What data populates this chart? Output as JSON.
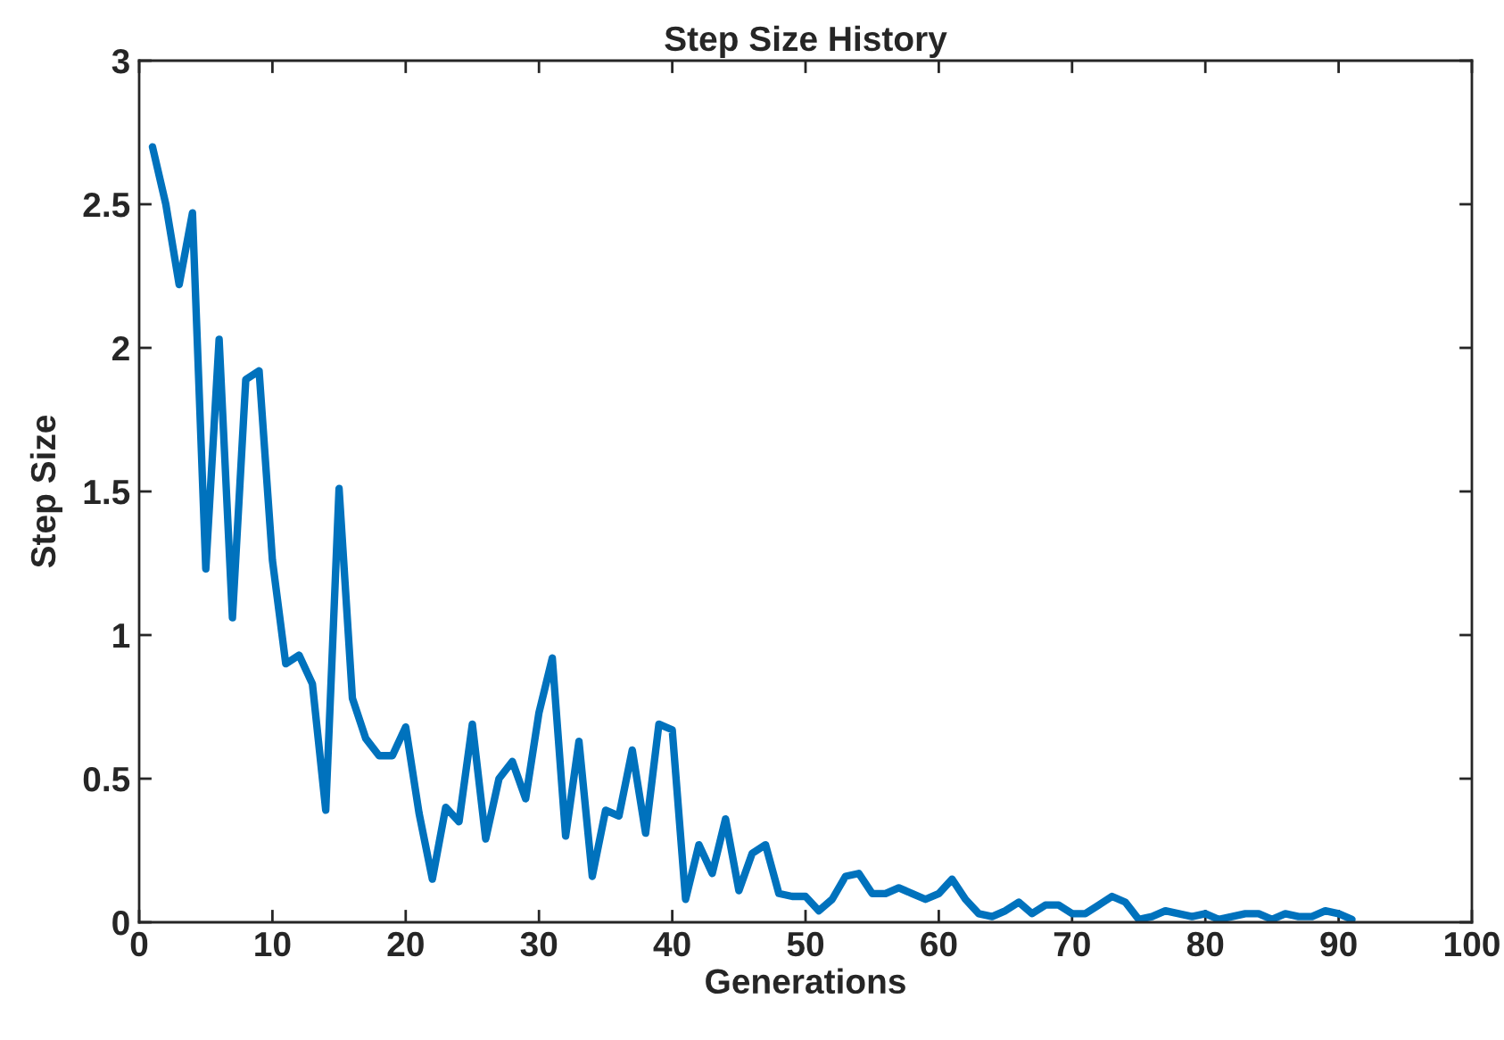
{
  "chart_data": {
    "type": "line",
    "title": "Step Size History",
    "xlabel": "Generations",
    "ylabel": "Step Size",
    "x": [
      1,
      2,
      3,
      4,
      5,
      6,
      7,
      8,
      9,
      10,
      11,
      12,
      13,
      14,
      15,
      16,
      17,
      18,
      19,
      20,
      21,
      22,
      23,
      24,
      25,
      26,
      27,
      28,
      29,
      30,
      31,
      32,
      33,
      34,
      35,
      36,
      37,
      38,
      39,
      40,
      41,
      42,
      43,
      44,
      45,
      46,
      47,
      48,
      49,
      50,
      51,
      52,
      53,
      54,
      55,
      56,
      57,
      58,
      59,
      60,
      61,
      62,
      63,
      64,
      65,
      66,
      67,
      68,
      69,
      70,
      71,
      72,
      73,
      74,
      75,
      76,
      77,
      78,
      79,
      80,
      81,
      82,
      83,
      84,
      85,
      86,
      87,
      88,
      89,
      90,
      91
    ],
    "series": [
      {
        "color": "#0072bd",
        "values": [
          2.7,
          2.5,
          2.22,
          2.47,
          1.23,
          2.03,
          1.06,
          1.89,
          1.92,
          1.26,
          0.9,
          0.93,
          0.83,
          0.39,
          1.51,
          0.78,
          0.64,
          0.58,
          0.58,
          0.68,
          0.38,
          0.15,
          0.4,
          0.35,
          0.69,
          0.29,
          0.5,
          0.56,
          0.43,
          0.73,
          0.92,
          0.3,
          0.63,
          0.16,
          0.39,
          0.37,
          0.6,
          0.31,
          0.69,
          0.67,
          0.08,
          0.27,
          0.17,
          0.36,
          0.11,
          0.24,
          0.27,
          0.1,
          0.09,
          0.09,
          0.04,
          0.08,
          0.16,
          0.17,
          0.1,
          0.1,
          0.12,
          0.1,
          0.08,
          0.1,
          0.15,
          0.08,
          0.03,
          0.02,
          0.04,
          0.07,
          0.03,
          0.06,
          0.06,
          0.03,
          0.03,
          0.06,
          0.09,
          0.07,
          0.01,
          0.02,
          0.04,
          0.03,
          0.02,
          0.03,
          0.01,
          0.02,
          0.03,
          0.03,
          0.01,
          0.03,
          0.02,
          0.02,
          0.04,
          0.03,
          0.01
        ]
      }
    ],
    "xlim": [
      0,
      100
    ],
    "xticks": [
      0,
      10,
      20,
      30,
      40,
      50,
      60,
      70,
      80,
      90,
      100
    ],
    "ylim": [
      0,
      3
    ],
    "yticks": [
      0,
      0.5,
      1,
      1.5,
      2,
      2.5,
      3
    ],
    "grid": false,
    "legend": false,
    "marker": "none",
    "line_style": "solid"
  }
}
